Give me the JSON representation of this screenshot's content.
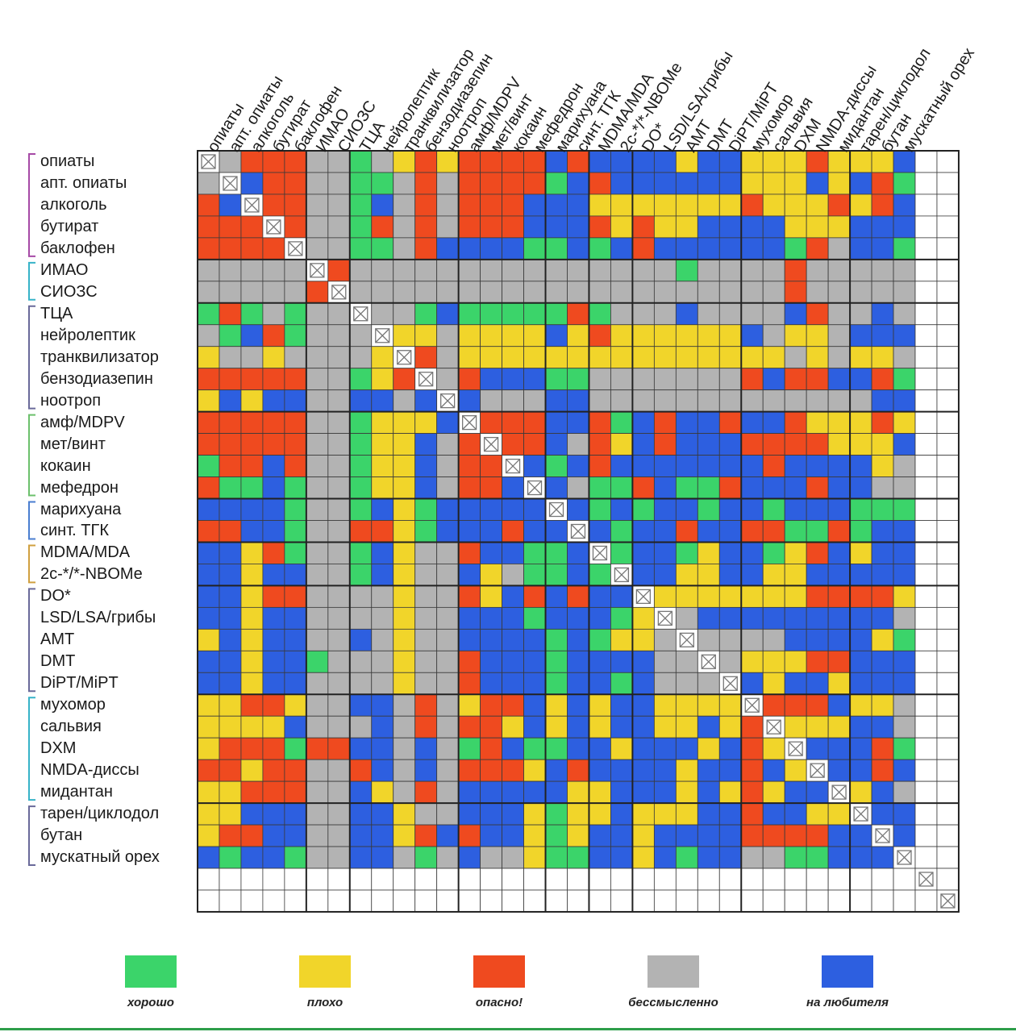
{
  "chart_data": {
    "type": "heatmap",
    "labels": [
      "опиаты",
      "апт. опиаты",
      "алкоголь",
      "бутират",
      "баклофен",
      "ИМАО",
      "СИОЗС",
      "ТЦА",
      "нейролептик",
      "транквилизатор",
      "бензодиазепин",
      "ноотроп",
      "амф/MDPV",
      "мет/винт",
      "кокаин",
      "мефедрон",
      "марихуана",
      "синт. ТГК",
      "MDMA/MDA",
      "2с-*/*-NBOMe",
      "DO*",
      "LSD/LSA/грибы",
      "AMT",
      "DMT",
      "DiPT/MiPT",
      "мухомор",
      "сальвия",
      "DXM",
      "NMDA-диссы",
      "мидантан",
      "тарен/циклодол",
      "бутан",
      "мускатный орех"
    ],
    "extra_empty": 2,
    "groups": [
      5,
      7,
      12,
      16,
      18,
      20,
      25,
      30
    ],
    "code": {
      "G": "хорошо",
      "Y": "плохо",
      "R": "опасно!",
      "N": "бессмысленно",
      "B": "на любителя",
      "X": "self"
    },
    "matrix": [
      "XNRRRNNGNYRYRRRRBRBBBBYBBYYYRYYYB",
      "NXBRRNNGGNRNRRRRGBRBBBBBBYYYBYBRG",
      "RBXRRNNGBNRNRRRBBBYYYYYYYRYYYRYRB",
      "RRRXRNNGRNRNRRRBBBRYRYYBBBBYYYBBB",
      "RRRRXNNGGNRBBBBGGBGBRBBBBBBGRNBBG",
      "NNNNNXRNNNNNNNNNNNNNNNGNNNNRNNNNN",
      "NNNNNRXNNNNNNNNNNNNNNNNNNNNRNNNNN",
      "GRGNGNNXNNGBGGGGGRGNNNBNNNNBRNNBN",
      "NGBRGNNNXYYNYYYYBYRYYYYYYBNYYNBBB",
      "YNNYNNNNYXRNYYYYYYYYYYYYYYYNYNYYN",
      "RRRRRNNGYRXNRBBBGGNNNNNNNRBRRBBRG",
      "YBYBBNNBBNBXBNNNBBNNNNNNNNNNNNNBB",
      "RRRRRNNGYYYBXRRRBBRGBRBBRBBRYYYRY",
      "RRRRRNNGYYBNRXRRBNRYBRBBBRRRRYYYB",
      "GRRBRNNGYYBNRRXBGBRBBBBBBBRBBBBYN",
      "RGGBGNNGYYBNRRBXBNGGRBGGRBBBRBBNN",
      "BBBBGNNGBYGBBBBBXBGBGBBGBBGBBBGGG",
      "RRBBGNNRRYGBBBRBBXBGBBRBBRRGGRGBB",
      "BBYRGNNGBYNNRBBGGBXGBBGYBBGYRBYBB",
      "BBYBBNNGBYNNBYNGGBGXBBYYBBYYBBBBB",
      "BBYRRNNNNYNNRYBRBRBBXYYYYYYYRRRRY",
      "BBYBBNNNNYNNBBBGBBBGYXNBBBBBBBBBN",
      "YBYBBNNBNYNNBBBBGBGYYNXNNNNBBBBYG",
      "BBYBBGNNNYNNRBBBGBBBBNNXNYYYRRBBB",
      "BBYBBNNNNYNNRBBBGBBGBNNNXBYBBYBBB",
      "YYRRYNNBBNRNYRRBYBYBBYYYYXRRRBYYN",
      "YYYYBNNNBNRNRRYBYBYBBYYBYRXYYYBBN",
      "YRRRGRRBBNBNGRBGGBBYBBBYBRYXBBBRG",
      "RRYRRNNRBNBNRRRYBRBBBBYBBRBYXBBRB",
      "YYRRRNNBYNRNBBBBBYYBBBYBYRYBBXYBN",
      "YYBBBNNBBYNNBBBYGYYBYYYBBRBBYYXBB",
      "YRRBBNNBBYRBRBBYGYBBYBBBBRRRRBBXB",
      "BGBBGNNBBNGNBNNYGGBBYBGBBNNGGBBBX"
    ]
  },
  "colors": {
    "G": "#3bd46a",
    "Y": "#f1d52a",
    "R": "#ef4a1f",
    "N": "#b3b3b3",
    "B": "#2d5fe0",
    "E": "#ffffff"
  },
  "legend": [
    {
      "key": "G",
      "label": "хорошо"
    },
    {
      "key": "Y",
      "label": "плохо"
    },
    {
      "key": "R",
      "label": "опасно!"
    },
    {
      "key": "N",
      "label": "бессмысленно"
    },
    {
      "key": "B",
      "label": "на любителя"
    }
  ]
}
